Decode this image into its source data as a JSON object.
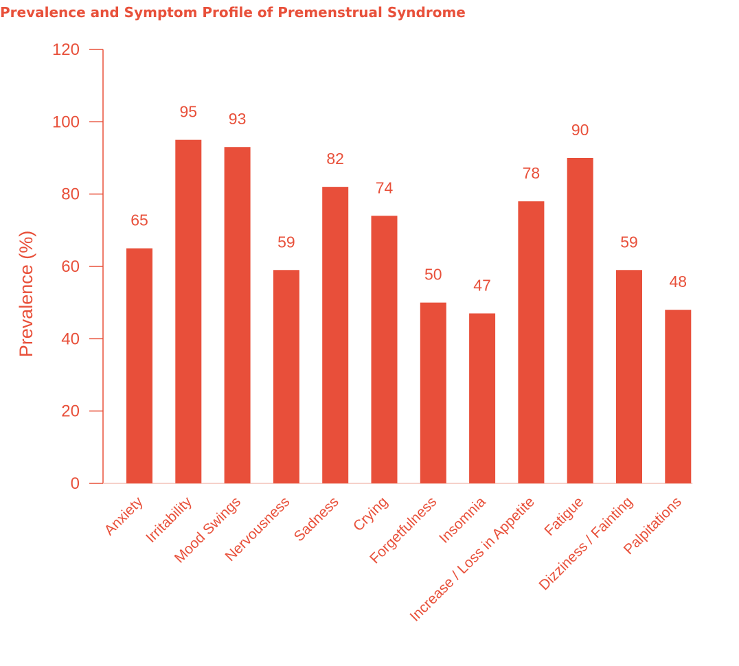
{
  "title": "Prevalence and Symptom Profile of Premenstrual Syndrome",
  "colors": {
    "accent": "#e8503a",
    "bar": "#e84f3a",
    "background": "#ffffff"
  },
  "chart_data": {
    "type": "bar",
    "title": "Prevalence and Symptom Profile of Premenstrual Syndrome",
    "xlabel": "",
    "ylabel": "Prevalence (%)",
    "ylim": [
      0,
      120
    ],
    "yticks": [
      0,
      20,
      40,
      60,
      80,
      100,
      120
    ],
    "grid": false,
    "legend": "none",
    "categories": [
      "Anxiety",
      "Irritability",
      "Mood Swings",
      "Nervousness",
      "Sadness",
      "Crying",
      "Forgetfulness",
      "Insomnia",
      "Increase / Loss in Appetite",
      "Fatigue",
      "Dizziness / Fainting",
      "Palpitations"
    ],
    "values": [
      65,
      95,
      93,
      59,
      82,
      74,
      50,
      47,
      78,
      90,
      59,
      48
    ]
  }
}
